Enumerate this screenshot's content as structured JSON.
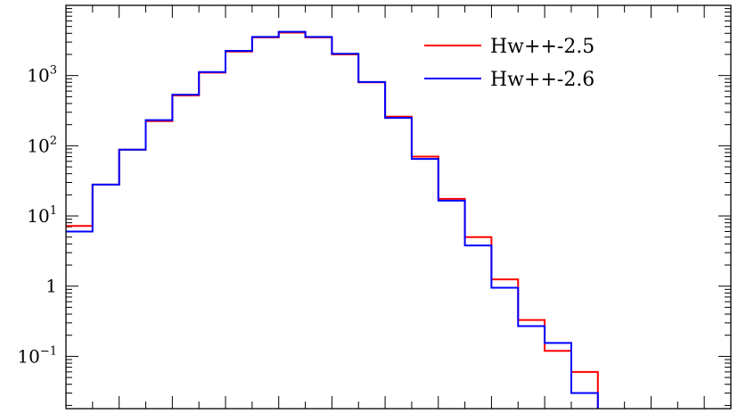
{
  "chart_data": {
    "type": "line",
    "step": true,
    "y_scale": "log",
    "grid": false,
    "legend_placement": "top-right",
    "xlabel": "",
    "ylabel": "",
    "x_edges": [
      0,
      1,
      2,
      3,
      4,
      5,
      6,
      7,
      8,
      9,
      10,
      11,
      12,
      13,
      14,
      15,
      16,
      17,
      18,
      19,
      20,
      21,
      22,
      23,
      24,
      25
    ],
    "ylim": [
      0.018,
      10000
    ],
    "y_ticks": [
      {
        "value": 0.1,
        "base": "10",
        "exp": "−1"
      },
      {
        "value": 1,
        "base": "1",
        "exp": ""
      },
      {
        "value": 10,
        "base": "10",
        "exp": "1"
      },
      {
        "value": 100,
        "base": "10",
        "exp": "2"
      },
      {
        "value": 1000,
        "base": "10",
        "exp": "3"
      }
    ],
    "series": [
      {
        "name": "Hw++-2.5",
        "color": "#ff0000",
        "values": [
          7.2,
          28,
          88,
          225,
          520,
          1100,
          2200,
          3500,
          4100,
          3500,
          2000,
          800,
          260,
          70,
          17.5,
          5.0,
          1.25,
          0.33,
          0.12,
          0.06,
          0.012
        ]
      },
      {
        "name": "Hw++-2.6",
        "color": "#0000ff",
        "values": [
          6.0,
          28,
          88,
          232,
          535,
          1120,
          2250,
          3550,
          4200,
          3550,
          2050,
          810,
          250,
          65,
          16.5,
          3.8,
          0.95,
          0.27,
          0.155,
          0.03,
          0.012
        ]
      }
    ]
  }
}
